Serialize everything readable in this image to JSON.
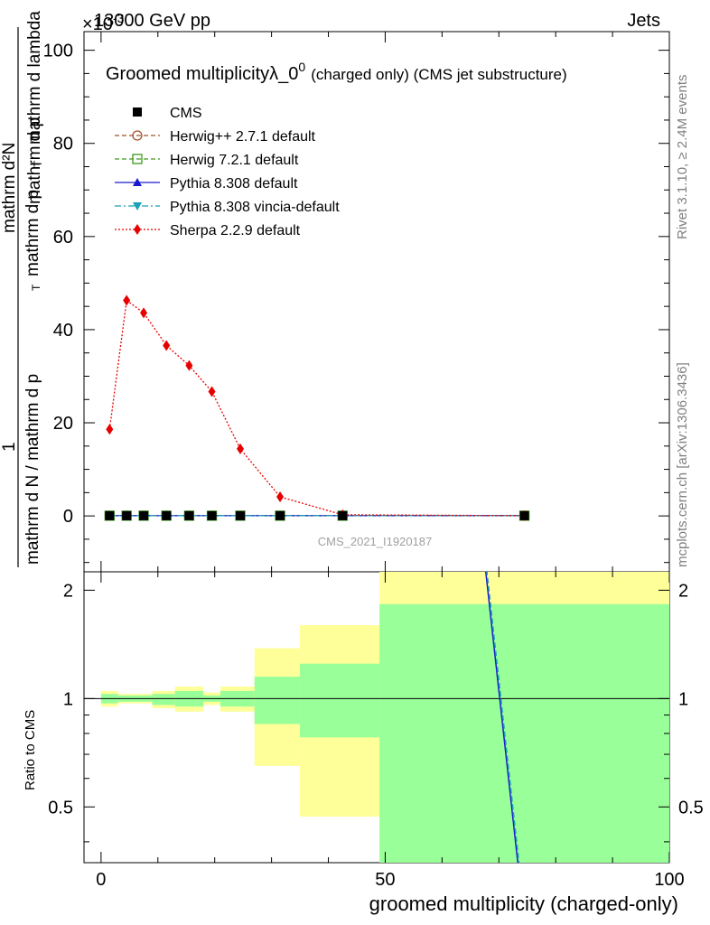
{
  "header": {
    "energy_label": "13000 GeV pp",
    "category_label": "Jets",
    "scale_label": "×10",
    "scale_exponent": "-3"
  },
  "side_labels": {
    "rivet": "Rivet 3.1.10, ≥ 2.4M events",
    "mcplots": "mcplots.cern.ch [arXiv:1306.3436]"
  },
  "chart_data": [
    {
      "type": "line",
      "title": "Groomed multiplicityλ_0",
      "title_sup": "0",
      "title_suffix": "(charged only) (CMS jet substructure)",
      "ylabel_numerator": "mathrm d²N",
      "ylabel_line1": "mathrm d p",
      "ylabel_sub": "T",
      "ylabel_line2": "mathrm d lambda",
      "ylabel_prefix": "1",
      "ylabel_denominator": "mathrm d N / mathrm d p",
      "ylabel_denominator_tail": "mathrm d p",
      "ylim": [
        -12,
        104
      ],
      "yticks": [
        0,
        20,
        40,
        60,
        80,
        100
      ],
      "xlim": [
        -3,
        100
      ],
      "watermark": "CMS_2021_I1920187",
      "legend_position": "top-left",
      "x": [
        1.5,
        4.5,
        7.5,
        11.5,
        15.5,
        19.5,
        24.5,
        31.5,
        42.5,
        74.5
      ],
      "series": [
        {
          "name": "CMS",
          "color": "#000000",
          "marker": "square",
          "line": "none",
          "values": [
            0.05,
            0.05,
            0.05,
            0.05,
            0.05,
            0.05,
            0.05,
            0.05,
            0.05,
            0.05
          ]
        },
        {
          "name": "Herwig++ 2.7.1 default",
          "color": "#a0522d",
          "marker": "circle-open",
          "line": "dashed",
          "values": [
            0.05,
            0.05,
            0.05,
            0.05,
            0.05,
            0.05,
            0.05,
            0.05,
            0.05,
            0.05
          ]
        },
        {
          "name": "Herwig 7.2.1 default",
          "color": "#3c9a1e",
          "marker": "square-open",
          "line": "dashed",
          "values": [
            0.05,
            0.05,
            0.05,
            0.05,
            0.05,
            0.05,
            0.05,
            0.05,
            0.05,
            0.05
          ]
        },
        {
          "name": "Pythia 8.308 default",
          "color": "#1a1acc",
          "marker": "triangle-up",
          "line": "solid",
          "values": [
            0.05,
            0.05,
            0.05,
            0.05,
            0.05,
            0.05,
            0.05,
            0.05,
            0.05,
            0.05
          ]
        },
        {
          "name": "Pythia 8.308 vincia-default",
          "color": "#1aa0b8",
          "marker": "triangle-down",
          "line": "dashdot",
          "values": [
            0.05,
            0.05,
            0.05,
            0.05,
            0.05,
            0.05,
            0.05,
            0.05,
            0.05,
            0.05
          ]
        },
        {
          "name": "Sherpa 2.2.9 default",
          "color": "#e60000",
          "marker": "diamond",
          "line": "dotted",
          "values": [
            18.6,
            46.3,
            43.6,
            36.6,
            32.3,
            26.7,
            14.4,
            4.1,
            0.25,
            0.05
          ]
        }
      ]
    },
    {
      "type": "area",
      "xlabel": "groomed multiplicity (charged-only)",
      "ylabel": "Ratio to CMS",
      "ylim": [
        0.35,
        2.25
      ],
      "yticks": [
        0.5,
        1,
        2
      ],
      "xlim": [
        -3,
        100
      ],
      "xticks": [
        0,
        50,
        100
      ],
      "reference_line": 1,
      "bands": {
        "colors": {
          "inner": "#99ff99",
          "outer": "#ffff99"
        },
        "bins": [
          {
            "x0": 0,
            "x1": 3,
            "inner": [
              0.97,
              1.03
            ],
            "outer": [
              0.95,
              1.05
            ]
          },
          {
            "x0": 3,
            "x1": 6,
            "inner": [
              0.98,
              1.02
            ],
            "outer": [
              0.97,
              1.03
            ]
          },
          {
            "x0": 6,
            "x1": 9,
            "inner": [
              0.98,
              1.02
            ],
            "outer": [
              0.97,
              1.03
            ]
          },
          {
            "x0": 9,
            "x1": 13,
            "inner": [
              0.96,
              1.03
            ],
            "outer": [
              0.94,
              1.05
            ]
          },
          {
            "x0": 13,
            "x1": 18,
            "inner": [
              0.95,
              1.05
            ],
            "outer": [
              0.92,
              1.08
            ]
          },
          {
            "x0": 18,
            "x1": 21,
            "inner": [
              0.98,
              1.02
            ],
            "outer": [
              0.96,
              1.04
            ]
          },
          {
            "x0": 21,
            "x1": 27,
            "inner": [
              0.95,
              1.05
            ],
            "outer": [
              0.92,
              1.08
            ]
          },
          {
            "x0": 27,
            "x1": 35,
            "inner": [
              0.85,
              1.15
            ],
            "outer": [
              0.65,
              1.38
            ]
          },
          {
            "x0": 35,
            "x1": 49,
            "inner": [
              0.78,
              1.25
            ],
            "outer": [
              0.47,
              1.6
            ]
          },
          {
            "x0": 49,
            "x1": 100,
            "inner": [
              0.3,
              1.83
            ],
            "outer": [
              0.3,
              2.5
            ]
          }
        ]
      },
      "lines": [
        {
          "name": "Pythia 8.308 default",
          "color": "#1a1acc",
          "points": [
            [
              67.5,
              2.4
            ],
            [
              73.8,
              0.3
            ]
          ]
        },
        {
          "name": "Pythia 8.308 vincia-default",
          "color": "#1aa0b8",
          "points": [
            [
              67.7,
              2.4
            ],
            [
              74.0,
              0.3
            ]
          ]
        }
      ]
    }
  ]
}
